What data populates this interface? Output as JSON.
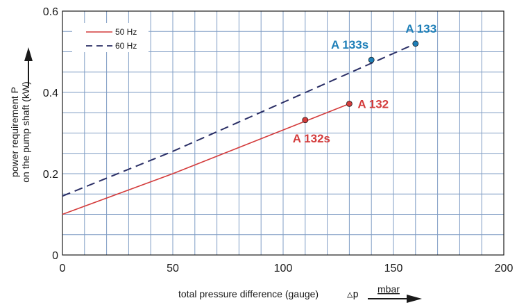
{
  "chart_data": {
    "type": "line",
    "xlabel": "total pressure difference (gauge)",
    "xsymbol": "△p",
    "xunit": "mbar",
    "ylabel_line1": "power requirement P",
    "ylabel_line2": "on the pump shaft (kW)",
    "xlim": [
      0,
      200
    ],
    "ylim": [
      0,
      0.6
    ],
    "x_ticks": [
      "0",
      "50",
      "100",
      "150",
      "200"
    ],
    "y_ticks": [
      "0",
      "0.2",
      "0.4",
      "0.6"
    ],
    "grid": true,
    "legend_position": "top-left",
    "series": [
      {
        "name": "50 Hz",
        "color": "#d43c3c",
        "style": "solid",
        "x": [
          0,
          50,
          130
        ],
        "y": [
          0.1,
          0.2,
          0.372
        ]
      },
      {
        "name": "60 Hz",
        "color": "#2b2f66",
        "style": "dashed",
        "x": [
          0,
          50,
          160
        ],
        "y": [
          0.145,
          0.255,
          0.52
        ]
      }
    ],
    "annotations": [
      {
        "label": "A 132s",
        "x": 110,
        "y": 0.332,
        "color": "#d43c3c",
        "label_pos": "below"
      },
      {
        "label": "A 132",
        "x": 130,
        "y": 0.372,
        "color": "#d43c3c",
        "label_pos": "right"
      },
      {
        "label": "A 133s",
        "x": 140,
        "y": 0.48,
        "color": "#1e7fb8",
        "label_pos": "above-left"
      },
      {
        "label": "A 133",
        "x": 160,
        "y": 0.52,
        "color": "#1e7fb8",
        "label_pos": "above"
      }
    ]
  }
}
